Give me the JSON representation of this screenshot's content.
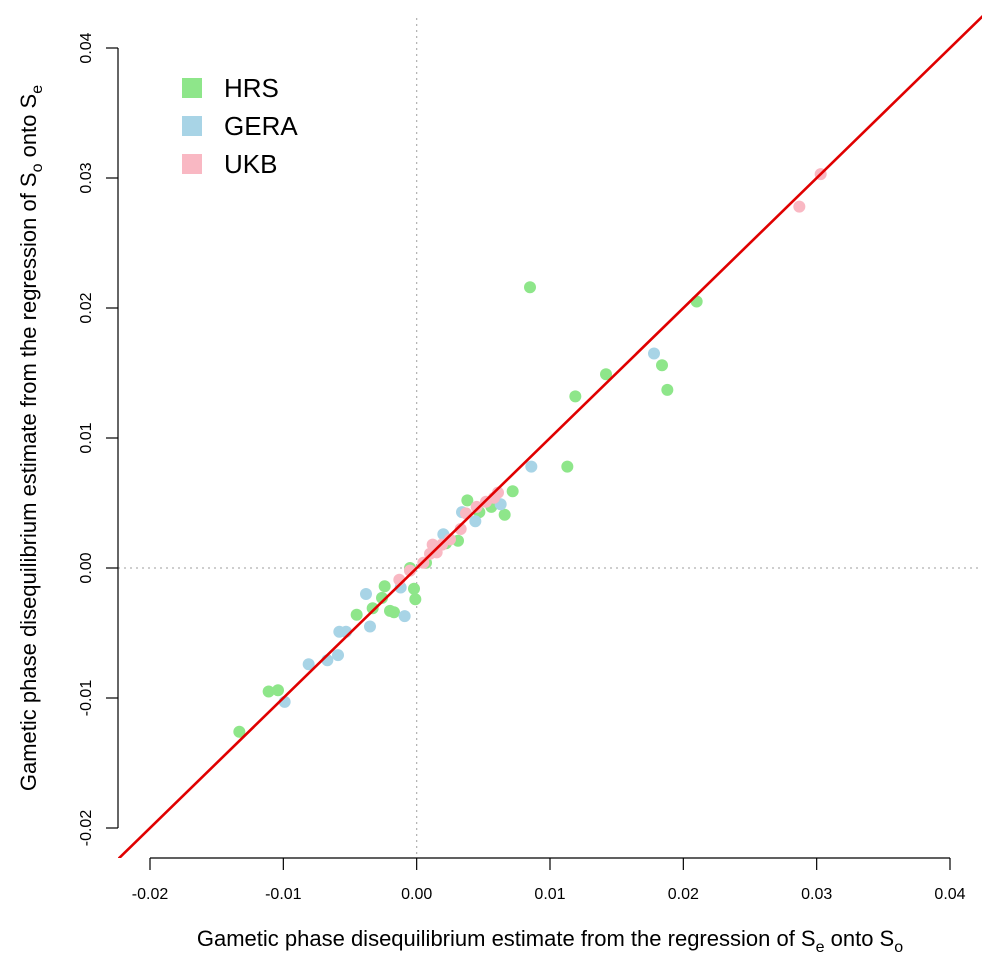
{
  "chart_data": {
    "type": "scatter",
    "title": "",
    "xlabel": {
      "prefix": "Gametic phase disequilibrium estimate from the regression of S",
      "sub1": "e",
      "middle": " onto S",
      "sub2": "o"
    },
    "ylabel": {
      "prefix": "Gametic phase disequilibrium estimate from the regression of S",
      "sub1": "o",
      "middle": " onto S",
      "sub2": "e"
    },
    "xlim": [
      -0.02,
      0.04
    ],
    "ylim": [
      -0.02,
      0.04
    ],
    "x_ticks": [
      "-0.02",
      "-0.01",
      "0.00",
      "0.01",
      "0.02",
      "0.03",
      "0.04"
    ],
    "y_ticks": [
      "-0.02",
      "-0.01",
      "0.00",
      "0.01",
      "0.02",
      "0.03",
      "0.04"
    ],
    "grid": false,
    "reference_lines": {
      "x": 0,
      "y": 0,
      "style": "dotted",
      "color": "#b0b0b0"
    },
    "fit_line": {
      "slope": 1.0,
      "intercept": 0.0,
      "color": "#e00000"
    },
    "legend": {
      "placement": "top-left"
    },
    "series": [
      {
        "name": "HRS",
        "color": "#8ee68a",
        "points": [
          [
            -0.0133,
            -0.0126
          ],
          [
            -0.0111,
            -0.0095
          ],
          [
            -0.0104,
            -0.0094
          ],
          [
            -0.0045,
            -0.0036
          ],
          [
            -0.0033,
            -0.0031
          ],
          [
            -0.0024,
            -0.0014
          ],
          [
            -0.0026,
            -0.0023
          ],
          [
            -0.002,
            -0.0033
          ],
          [
            -0.0017,
            -0.0034
          ],
          [
            -0.0005,
            0.0
          ],
          [
            -0.0002,
            -0.0016
          ],
          [
            -0.0001,
            -0.0024
          ],
          [
            0.0007,
            0.0004
          ],
          [
            0.0022,
            0.0019
          ],
          [
            0.0031,
            0.0021
          ],
          [
            0.0038,
            0.0052
          ],
          [
            0.0047,
            0.0043
          ],
          [
            0.0056,
            0.0047
          ],
          [
            0.0066,
            0.0041
          ],
          [
            0.0072,
            0.0059
          ],
          [
            0.0085,
            0.0216
          ],
          [
            0.0113,
            0.0078
          ],
          [
            0.0119,
            0.0132
          ],
          [
            0.0142,
            0.0149
          ],
          [
            0.0184,
            0.0156
          ],
          [
            0.0188,
            0.0137
          ],
          [
            0.021,
            0.0205
          ]
        ]
      },
      {
        "name": "GERA",
        "color": "#a8d4e6",
        "points": [
          [
            -0.0099,
            -0.0103
          ],
          [
            -0.0081,
            -0.0074
          ],
          [
            -0.0067,
            -0.0071
          ],
          [
            -0.0059,
            -0.0067
          ],
          [
            -0.0058,
            -0.0049
          ],
          [
            -0.0053,
            -0.0049
          ],
          [
            -0.0038,
            -0.002
          ],
          [
            -0.0035,
            -0.0045
          ],
          [
            -0.0012,
            -0.0015
          ],
          [
            -0.0009,
            -0.0037
          ],
          [
            0.002,
            0.0026
          ],
          [
            0.0034,
            0.0043
          ],
          [
            0.0044,
            0.0036
          ],
          [
            0.0063,
            0.0049
          ],
          [
            0.0086,
            0.0078
          ],
          [
            0.0178,
            0.0165
          ]
        ]
      },
      {
        "name": "UKB",
        "color": "#f9b8c3",
        "points": [
          [
            -0.0013,
            -0.0009
          ],
          [
            -0.0005,
            -0.0002
          ],
          [
            0.0005,
            0.0004
          ],
          [
            0.001,
            0.0011
          ],
          [
            0.0012,
            0.0018
          ],
          [
            0.0015,
            0.0012
          ],
          [
            0.0019,
            0.0018
          ],
          [
            0.0025,
            0.0022
          ],
          [
            0.0033,
            0.003
          ],
          [
            0.0037,
            0.0042
          ],
          [
            0.0045,
            0.0047
          ],
          [
            0.0052,
            0.0051
          ],
          [
            0.0058,
            0.0054
          ],
          [
            0.0061,
            0.0058
          ],
          [
            0.0287,
            0.0278
          ],
          [
            0.0303,
            0.0303
          ]
        ]
      }
    ]
  }
}
